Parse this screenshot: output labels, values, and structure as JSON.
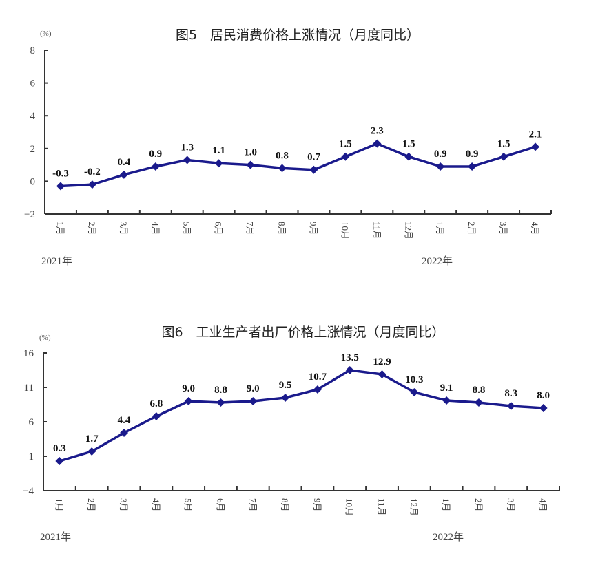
{
  "chart_data": [
    {
      "type": "line",
      "title": "图5　居民消费价格上涨情况（月度同比）",
      "ylabel": "(%)",
      "categories": [
        "1月",
        "2月",
        "3月",
        "4月",
        "5月",
        "6月",
        "7月",
        "8月",
        "9月",
        "10月",
        "11月",
        "12月",
        "1月",
        "2月",
        "3月",
        "4月"
      ],
      "year_labels": [
        "2021年",
        "2022年"
      ],
      "values": [
        -0.3,
        -0.2,
        0.4,
        0.9,
        1.3,
        1.1,
        1.0,
        0.8,
        0.7,
        1.5,
        2.3,
        1.5,
        0.9,
        0.9,
        1.5,
        2.1
      ],
      "data_labels": [
        "-0.3",
        "-0.2",
        "0.4",
        "0.9",
        "1.3",
        "1.1",
        "1.0",
        "0.8",
        "0.7",
        "1.5",
        "2.3",
        "1.5",
        "0.9",
        "0.9",
        "1.5",
        "2.1"
      ],
      "yticks": [
        -2,
        0,
        2,
        4,
        6,
        8
      ],
      "ylim": [
        -2,
        8
      ],
      "grid": false,
      "color": "#1a1a8c"
    },
    {
      "type": "line",
      "title": "图6　工业生产者出厂价格上涨情况（月度同比）",
      "ylabel": "(%)",
      "categories": [
        "1月",
        "2月",
        "3月",
        "4月",
        "5月",
        "6月",
        "7月",
        "8月",
        "9月",
        "10月",
        "11月",
        "12月",
        "1月",
        "2月",
        "3月",
        "4月"
      ],
      "year_labels": [
        "2021年",
        "2022年"
      ],
      "values": [
        0.3,
        1.7,
        4.4,
        6.8,
        9.0,
        8.8,
        9.0,
        9.5,
        10.7,
        13.5,
        12.9,
        10.3,
        9.1,
        8.8,
        8.3,
        8.0
      ],
      "data_labels": [
        "0.3",
        "1.7",
        "4.4",
        "6.8",
        "9.0",
        "8.8",
        "9.0",
        "9.5",
        "10.7",
        "13.5",
        "12.9",
        "10.3",
        "9.1",
        "8.8",
        "8.3",
        "8.0"
      ],
      "yticks": [
        -4,
        1,
        6,
        11,
        16
      ],
      "ylim": [
        -4,
        16
      ],
      "grid": false,
      "color": "#1a1a8c"
    }
  ]
}
